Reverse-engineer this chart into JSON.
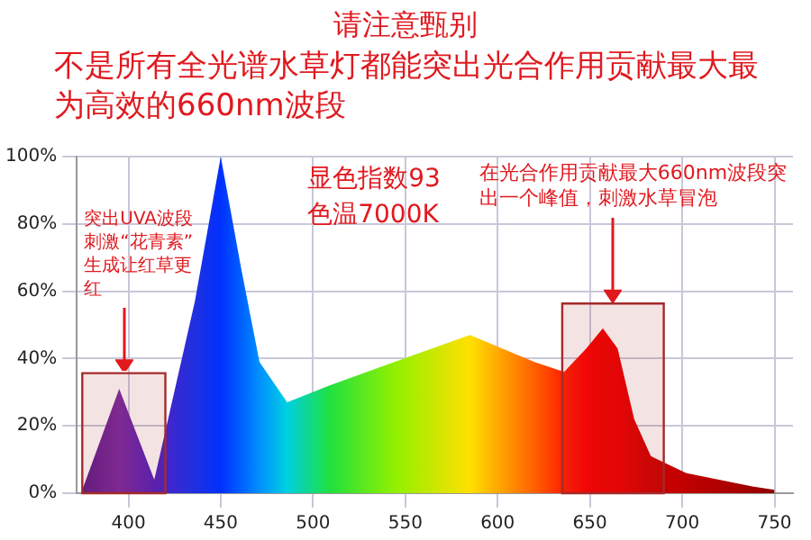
{
  "chart_data": {
    "type": "area",
    "title": "请注意甄别",
    "subtitle": "不是所有全光谱水草灯都能突出光合作用贡献最大最为高效的660nm波段",
    "x": [
      375,
      395,
      414,
      436,
      450,
      461,
      471,
      486,
      509,
      544,
      585,
      620,
      636,
      648,
      657,
      665,
      674,
      683,
      702,
      738,
      750
    ],
    "series": [
      {
        "values": [
          1,
          31,
          4,
          57,
          100,
          67,
          39,
          27,
          32,
          39,
          47,
          39,
          36,
          43,
          49,
          43,
          22,
          11,
          6,
          2,
          1
        ],
        "colors": [
          "#5a1a8a",
          "#7a2aa0",
          "#5020c0",
          "#2030e0",
          "#0030ff",
          "#0060ff",
          "#0090ff",
          "#00d0e0",
          "#20e040",
          "#90f000",
          "#ffe000",
          "#ff6000",
          "#ff2000",
          "#ff0000",
          "#f00000",
          "#ee0000",
          "#e00000",
          "#d00000",
          "#c00000",
          "#a00000",
          "#900000"
        ]
      }
    ],
    "xlim": [
      372,
      760
    ],
    "xticks": [
      400,
      450,
      500,
      550,
      600,
      650,
      700,
      750
    ],
    "ylim": [
      0,
      100
    ],
    "yticks": [
      {
        "value": 0,
        "label": "0%"
      },
      {
        "value": 20,
        "label": "20%"
      },
      {
        "value": 40,
        "label": "40%"
      },
      {
        "value": 60,
        "label": "60%"
      },
      {
        "value": 80,
        "label": "80%"
      },
      {
        "value": 100,
        "label": "100%"
      }
    ],
    "grid": true,
    "legend": false,
    "marker": "none",
    "bands": [
      {
        "axis": "x",
        "from": 375,
        "to": 420,
        "label": "突出UVA波段刺激“花青素”生成让红草更红",
        "color": "#a52a2a"
      },
      {
        "axis": "x",
        "from": 635,
        "to": 690,
        "label": "在光合作用贡献最大660nm波段突出一个峰值，刺激水草冒泡",
        "color": "#a52a2a"
      }
    ],
    "annotations": [
      "显色指数93",
      "色温7000K"
    ]
  }
}
